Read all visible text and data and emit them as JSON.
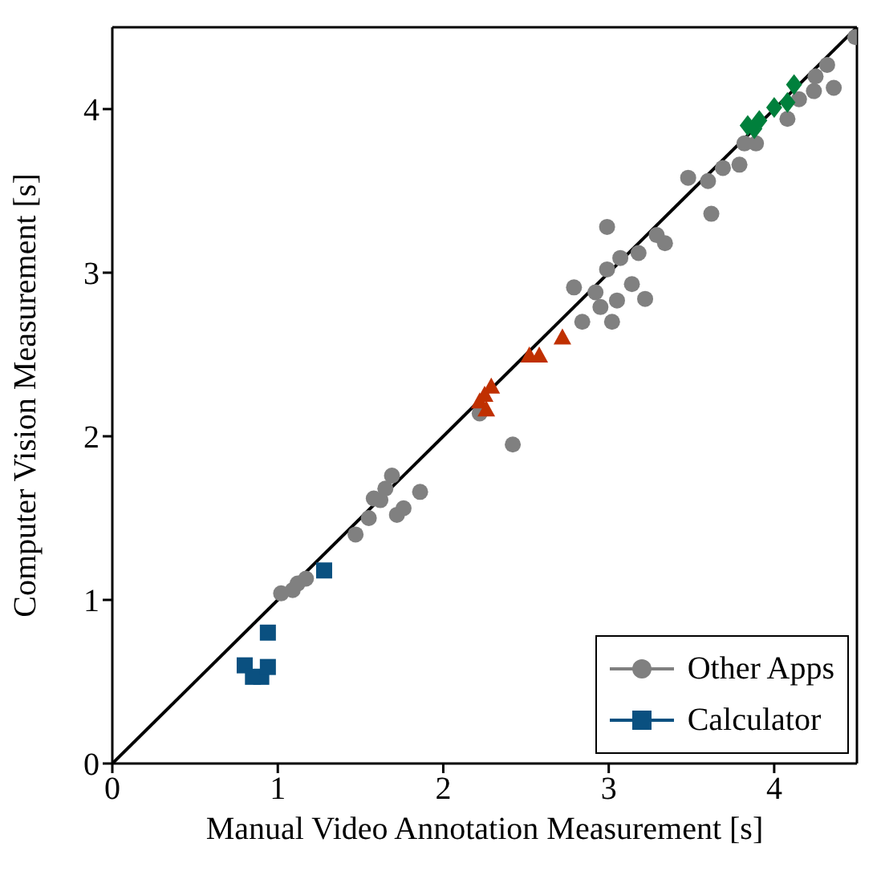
{
  "chart_data": {
    "type": "scatter",
    "xlabel": "Manual Video Annotation Measurement [s]",
    "ylabel": "Computer Vision Measurement [s]",
    "xlim": [
      0,
      4.5
    ],
    "ylim": [
      0,
      4.5
    ],
    "xticks": [
      0,
      1,
      2,
      3,
      4
    ],
    "yticks": [
      0,
      1,
      2,
      3,
      4
    ],
    "legend": "bottom right",
    "series": [
      {
        "type": "line",
        "color": "#000000",
        "marker": "none",
        "line_style": "solid",
        "x": [
          0,
          4.5
        ],
        "values": [
          0,
          4.5
        ]
      },
      {
        "name": "Other Apps",
        "color": "#808080",
        "marker": "circle",
        "x": [
          1.02,
          1.09,
          1.12,
          1.17,
          1.47,
          1.55,
          1.58,
          1.62,
          1.65,
          1.69,
          1.72,
          1.76,
          1.86,
          2.22,
          2.42,
          2.79,
          2.84,
          2.92,
          2.95,
          2.99,
          2.99,
          3.02,
          3.05,
          3.07,
          3.14,
          3.18,
          3.22,
          3.29,
          3.34,
          3.48,
          3.6,
          3.62,
          3.69,
          3.79,
          3.82,
          3.89,
          4.08,
          4.15,
          4.24,
          4.25,
          4.32,
          4.36,
          4.49
        ],
        "values": [
          1.04,
          1.06,
          1.1,
          1.13,
          1.4,
          1.5,
          1.62,
          1.61,
          1.68,
          1.76,
          1.52,
          1.56,
          1.66,
          2.14,
          1.95,
          2.91,
          2.7,
          2.88,
          2.79,
          3.28,
          3.02,
          2.7,
          2.83,
          3.09,
          2.93,
          3.12,
          2.84,
          3.23,
          3.18,
          3.58,
          3.56,
          3.36,
          3.64,
          3.66,
          3.79,
          3.79,
          3.94,
          4.06,
          4.11,
          4.2,
          4.27,
          4.13,
          4.44
        ]
      },
      {
        "color": "#00803c",
        "marker": "diamond",
        "x": [
          3.84,
          3.88,
          3.91,
          4.0,
          4.08,
          4.12
        ],
        "values": [
          3.9,
          3.88,
          3.93,
          4.01,
          4.04,
          4.15
        ]
      },
      {
        "name": "Calculator",
        "color": "#0a5080",
        "marker": "square",
        "x": [
          0.8,
          0.85,
          0.9,
          0.94,
          0.94,
          1.28
        ],
        "values": [
          0.6,
          0.53,
          0.53,
          0.59,
          0.8,
          1.18
        ]
      },
      {
        "color": "#c03000",
        "marker": "triangle",
        "x": [
          2.22,
          2.25,
          2.26,
          2.29,
          2.52,
          2.58,
          2.72
        ],
        "values": [
          2.21,
          2.25,
          2.16,
          2.3,
          2.49,
          2.49,
          2.6
        ]
      }
    ]
  }
}
